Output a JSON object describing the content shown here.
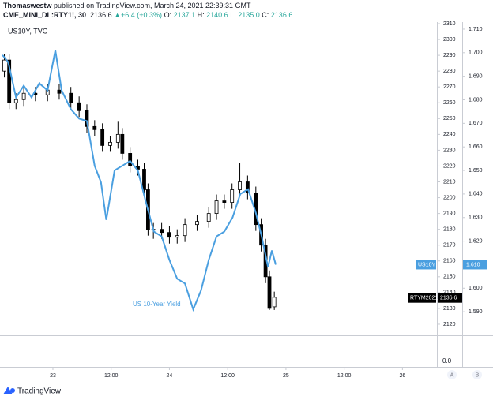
{
  "header": {
    "author": "Thomaswestw",
    "published": "published on TradingView.com, March 24, 2021 22:39:31 GMT",
    "symbol": "CME_MINI_DL:RTY1!, 30",
    "price": "2136.6",
    "arrow": "▲",
    "change": "+6.4 (+0.3%)",
    "o_label": "O:",
    "o": "2137.1",
    "h_label": "H:",
    "h": "2140.6",
    "l_label": "L:",
    "l": "2135.0",
    "c_label": "C:",
    "c": "2136.6"
  },
  "chart_data": {
    "type": "candlestick",
    "legend_label": "US10Y, TVC",
    "annotation": "US 10-Year Yield",
    "lower_pane_label": "0.0",
    "xlim": [
      -10.9,
      79.1
    ],
    "xticks": [
      {
        "value": 0,
        "label": "23"
      },
      {
        "value": 12,
        "label": "12:00"
      },
      {
        "value": 24,
        "label": "24"
      },
      {
        "value": 36,
        "label": "12:00"
      },
      {
        "value": 48,
        "label": "25"
      },
      {
        "value": 60,
        "label": "12:00"
      },
      {
        "value": 72,
        "label": "26"
      }
    ],
    "ylim": [
      2113,
      2311
    ],
    "yticks": [
      2120,
      2130,
      2140,
      2150,
      2160,
      2170,
      2180,
      2190,
      2200,
      2210,
      2220,
      2230,
      2240,
      2250,
      2260,
      2270,
      2280,
      2290,
      2300,
      2310
    ],
    "y2lim": [
      1.58,
      1.713
    ],
    "y2ticks": [
      {
        "value": 1.59,
        "label": "1.590"
      },
      {
        "value": 1.6,
        "label": "1.600"
      },
      {
        "value": 1.61,
        "label": "1.610"
      },
      {
        "value": 1.62,
        "label": "1.620"
      },
      {
        "value": 1.63,
        "label": "1.630"
      },
      {
        "value": 1.64,
        "label": "1.640"
      },
      {
        "value": 1.65,
        "label": "1.650"
      },
      {
        "value": 1.66,
        "label": "1.660"
      },
      {
        "value": 1.67,
        "label": "1.670"
      },
      {
        "value": 1.68,
        "label": "1.680"
      },
      {
        "value": 1.69,
        "label": "1.690"
      },
      {
        "value": 1.7,
        "label": "1.700"
      },
      {
        "value": 1.71,
        "label": "1.710"
      }
    ],
    "axis_buttons": [
      "A",
      "B"
    ],
    "series": [
      {
        "name": "RTYM2021",
        "type": "candlestick",
        "color": "#000000",
        "up_color": "#ffffff",
        "last_value": 2136.6,
        "x": [
          -10,
          -9,
          -7.6,
          -6,
          -3.6,
          -1.1,
          1.3,
          3.7,
          5.4,
          7,
          8.6,
          10.2,
          11.8,
          13.4,
          14.3,
          15.9,
          17.5,
          18.8,
          19.6,
          20.7,
          22.4,
          24,
          25.6,
          27.2,
          29.7,
          32.1,
          33.7,
          35.3,
          36.9,
          38.5,
          40.1,
          41.8,
          42.9,
          43.8,
          44.6,
          45.6
        ],
        "open": [
          2280,
          2287,
          2260,
          2262,
          2266,
          2265,
          2268,
          2266,
          2260,
          2255,
          2245,
          2243,
          2233,
          2235,
          2240,
          2228,
          2220,
          2218,
          2205,
          2180,
          2180,
          2178,
          2175,
          2176,
          2183,
          2185,
          2190,
          2198,
          2197,
          2205,
          2210,
          2203,
          2183,
          2170,
          2150,
          2131
        ],
        "high": [
          2291,
          2291,
          2266,
          2270,
          2270,
          2272,
          2272,
          2270,
          2264,
          2259,
          2249,
          2247,
          2239,
          2248,
          2244,
          2232,
          2224,
          2222,
          2209,
          2184,
          2184,
          2182,
          2180,
          2187,
          2189,
          2194,
          2202,
          2202,
          2209,
          2222,
          2214,
          2207,
          2187,
          2174,
          2154,
          2140.6
        ],
        "low": [
          2276,
          2256,
          2256,
          2258,
          2261,
          2261,
          2262,
          2256,
          2251,
          2241,
          2239,
          2229,
          2229,
          2231,
          2224,
          2216,
          2214,
          2201,
          2176,
          2174,
          2174,
          2171,
          2171,
          2172,
          2179,
          2181,
          2186,
          2193,
          2193,
          2201,
          2199,
          2179,
          2166,
          2146,
          2129,
          2129
        ],
        "close": [
          2287,
          2260,
          2262,
          2266,
          2265,
          2268,
          2266,
          2260,
          2255,
          2245,
          2243,
          2233,
          2235,
          2240,
          2228,
          2220,
          2218,
          2205,
          2180,
          2180,
          2178,
          2175,
          2176,
          2183,
          2185,
          2190,
          2198,
          2197,
          2205,
          2210,
          2203,
          2183,
          2170,
          2150,
          2130,
          2137
        ]
      },
      {
        "name": "US10Y",
        "type": "line",
        "axis": "y2",
        "color": "#4a9fe0",
        "last_value": {
          "value": 1.61,
          "label": "1.610"
        },
        "x": [
          -10.4,
          -9.2,
          -7.6,
          -6.0,
          -4.4,
          -2.8,
          -1.1,
          0.5,
          1.8,
          3.7,
          5.4,
          7.0,
          8.6,
          9.9,
          11.0,
          12.7,
          14.3,
          15.9,
          17.5,
          19.1,
          20.8,
          22.4,
          24.0,
          25.6,
          27.2,
          28.9,
          30.5,
          32.1,
          33.7,
          35.3,
          37.0,
          38.6,
          40.2,
          41.8,
          43.0,
          44.3,
          45.1,
          45.9
        ],
        "values": [
          1.699,
          1.696,
          1.681,
          1.686,
          1.681,
          1.687,
          1.684,
          1.701,
          1.684,
          1.676,
          1.672,
          1.671,
          1.652,
          1.645,
          1.629,
          1.65,
          1.652,
          1.654,
          1.65,
          1.637,
          1.624,
          1.622,
          1.612,
          1.604,
          1.602,
          1.591,
          1.599,
          1.612,
          1.622,
          1.624,
          1.63,
          1.64,
          1.642,
          1.632,
          1.622,
          1.609,
          1.616,
          1.61
        ]
      }
    ]
  }
}
